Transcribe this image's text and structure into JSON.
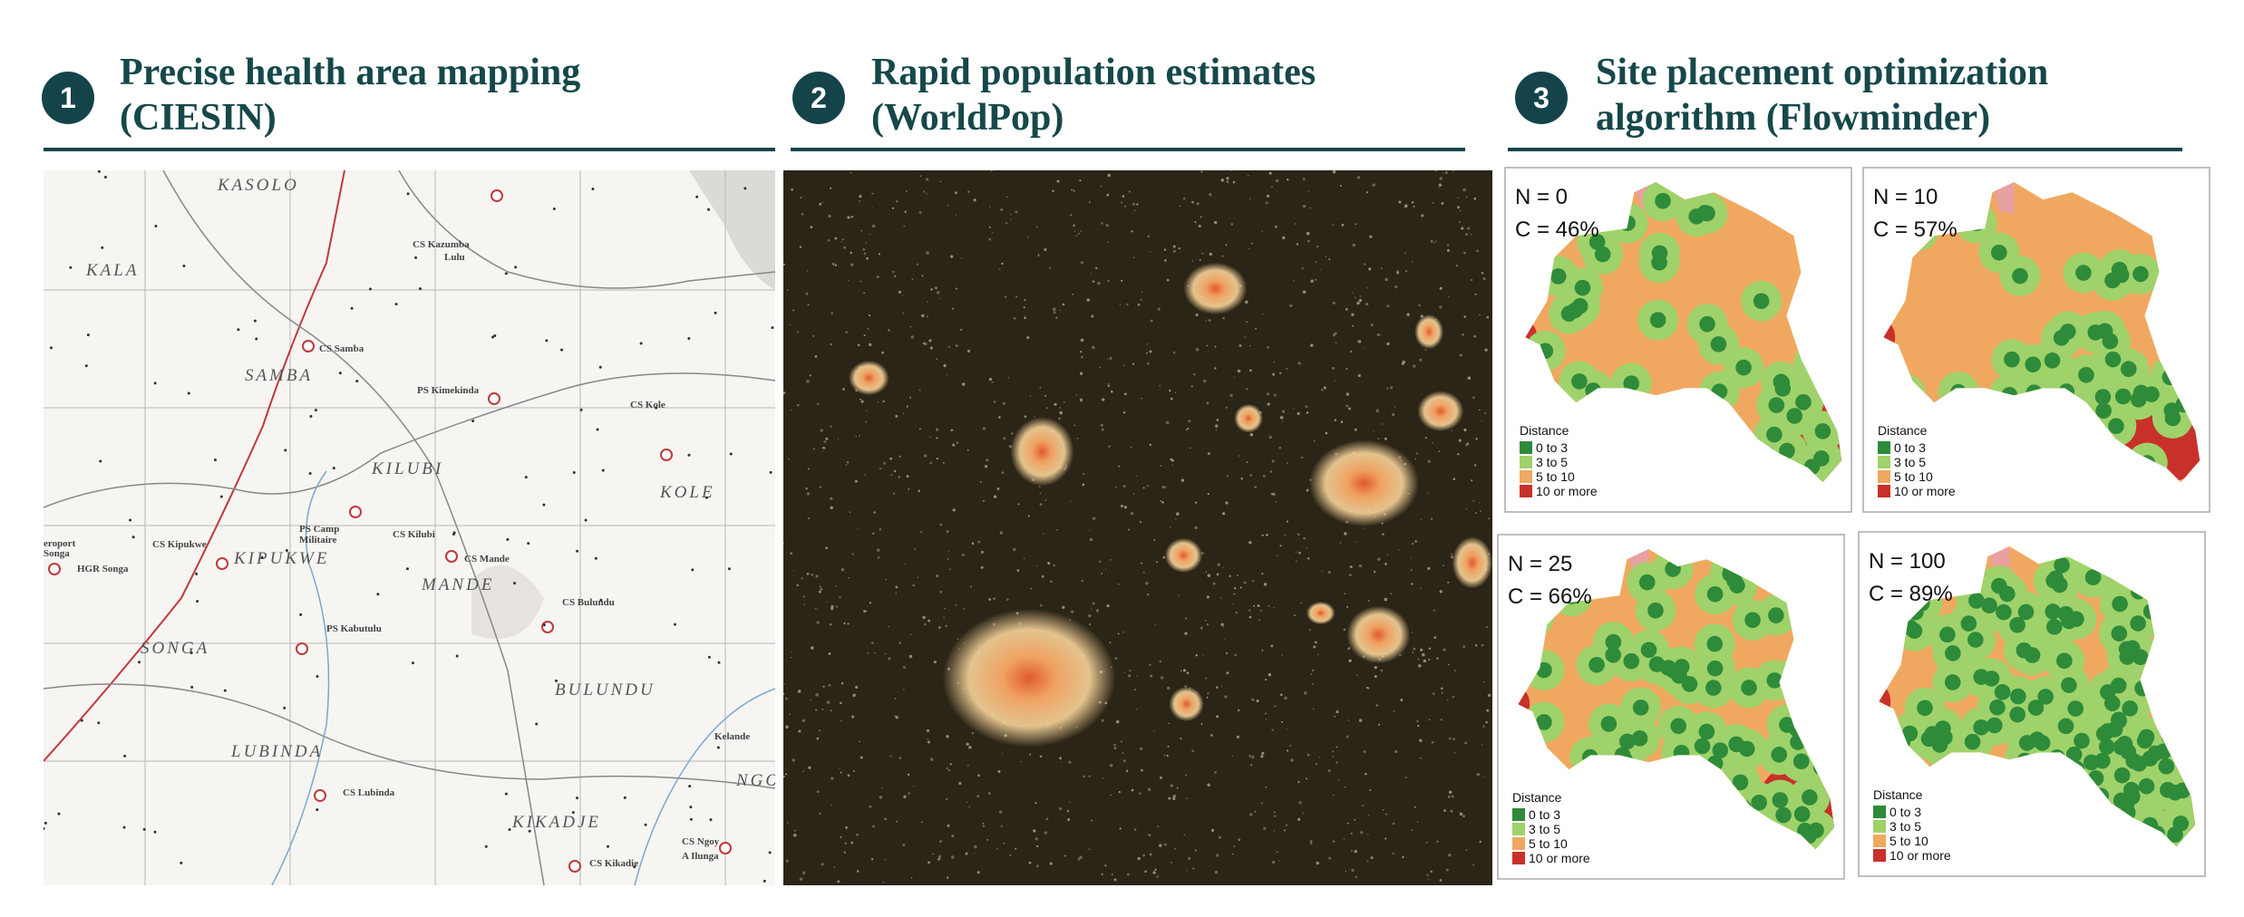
{
  "panels": [
    {
      "number": "1",
      "title": [
        "Precise health area mapping",
        "(CIESIN)"
      ],
      "map_labels": [
        "KASOLO",
        "KALA",
        "SAMBA",
        "KILUBI",
        "KOLE",
        "KIPUKWE",
        "MANDE",
        "SONGA",
        "BULUNDU",
        "LUBINDA",
        "KIKADJE",
        "NGO",
        "CS Samba",
        "CS Kazumba",
        "Lulu",
        "PS Kimekinda",
        "CS Kole",
        "PS Camp",
        "Militaire",
        "CS Kipukwe",
        "CS Kilubi",
        "CS Mande",
        "HGR Songa",
        "PS Kabutulu",
        "CS Bulundu",
        "CS Lubinda",
        "CS Kikadie",
        "CS Ngoy",
        "A Ilunga",
        "Kelande",
        "eroport",
        "Songa"
      ]
    },
    {
      "number": "2",
      "title": [
        "Rapid population estimates",
        "(WorldPop)"
      ]
    },
    {
      "number": "3",
      "title": [
        "Site placement optimization",
        "algorithm (Flowminder)"
      ],
      "scenarios": [
        {
          "n": "N = 0",
          "c": "C = 46%"
        },
        {
          "n": "N = 10",
          "c": "C = 57%"
        },
        {
          "n": "N = 25",
          "c": "C = 66%"
        },
        {
          "n": "N = 100",
          "c": "C = 89%"
        }
      ],
      "legend": {
        "title": "Distance",
        "items": [
          "0 to 3",
          "3 to 5",
          "5 to 10",
          "10 or more"
        ]
      }
    }
  ]
}
